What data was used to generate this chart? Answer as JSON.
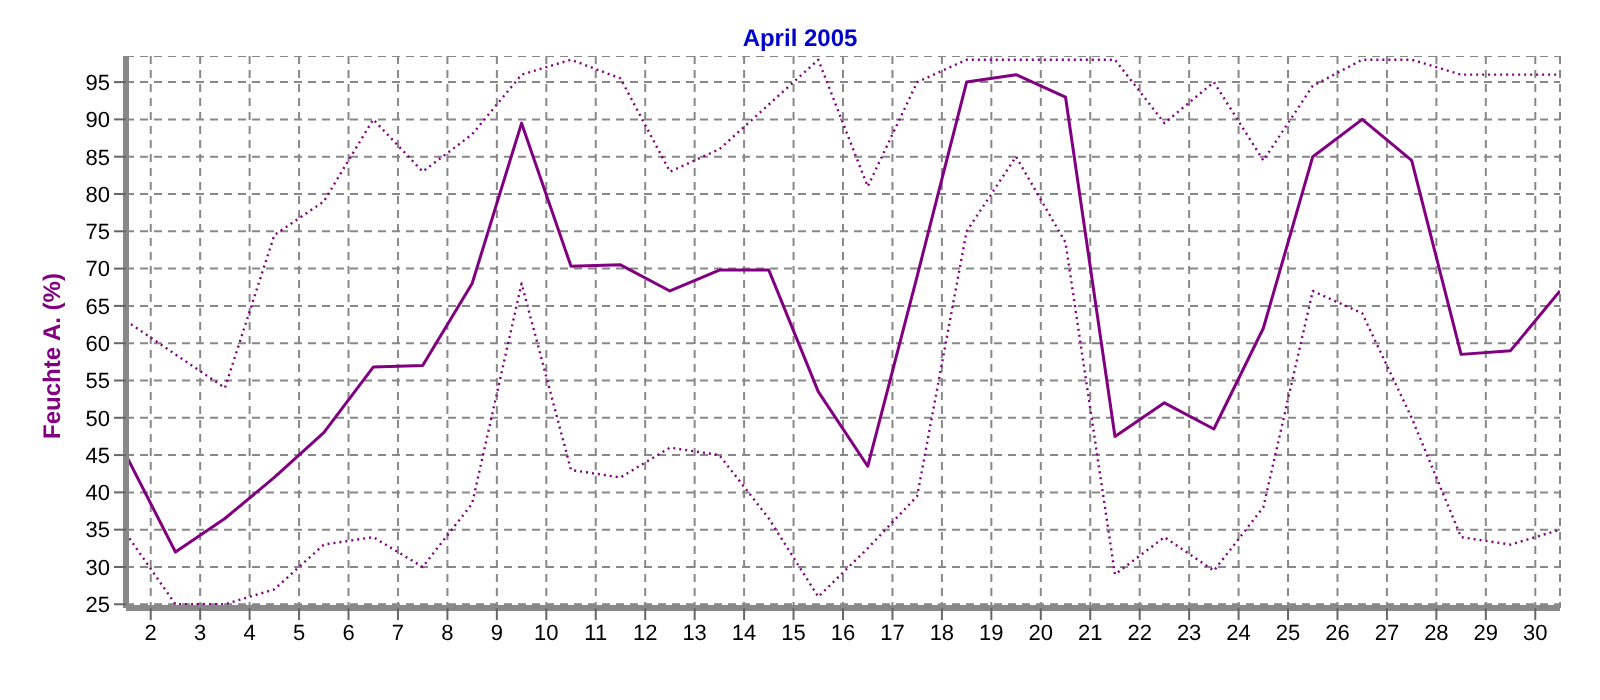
{
  "chart_data": {
    "type": "line",
    "title": "April 2005",
    "ylabel": "Feuchte A. (%)",
    "x": [
      1.5,
      2.5,
      3.5,
      4.5,
      5.5,
      6.5,
      7.5,
      8.5,
      9.5,
      10.5,
      11.5,
      12.5,
      13.5,
      14.5,
      15.5,
      16.5,
      17.5,
      18.5,
      19.5,
      20.5,
      21.5,
      22.5,
      23.5,
      24.5,
      25.5,
      26.5,
      27.5,
      28.5,
      29.5,
      30.5
    ],
    "series": [
      {
        "color": "#800080",
        "line_style": "dotted",
        "values": [
          63,
          58.5,
          54,
          74.5,
          79,
          90,
          83,
          88,
          96,
          98,
          95.5,
          83,
          86,
          92,
          98,
          81,
          95,
          98,
          98,
          98,
          98,
          89.5,
          95,
          84.5,
          94.5,
          98,
          98,
          96,
          96,
          96
        ]
      },
      {
        "color": "#800080",
        "line_style": "solid",
        "values": [
          45,
          32,
          36.5,
          42,
          48,
          56.8,
          57,
          68,
          89.5,
          70.3,
          70.5,
          67,
          69.8,
          69.8,
          53.5,
          43.5,
          69,
          95,
          96,
          93,
          47.5,
          52,
          48.5,
          62,
          85,
          90,
          84.5,
          58.5,
          59,
          67
        ]
      },
      {
        "color": "#800080",
        "line_style": "dotted",
        "values": [
          34.5,
          25,
          25,
          27,
          33,
          34,
          30,
          38.5,
          68,
          43,
          42,
          46,
          45,
          36.5,
          26,
          32.5,
          39.5,
          75,
          85,
          73.5,
          29,
          34,
          29.5,
          38,
          67,
          64,
          50,
          34,
          33,
          35
        ]
      }
    ],
    "xlim": [
      1.5,
      30.5
    ],
    "xticks": [
      2,
      3,
      4,
      5,
      6,
      7,
      8,
      9,
      10,
      11,
      12,
      13,
      14,
      15,
      16,
      17,
      18,
      19,
      20,
      21,
      22,
      23,
      24,
      25,
      26,
      27,
      28,
      29,
      30
    ],
    "ylim": [
      24.5,
      98.5
    ],
    "yticks": [
      25,
      30,
      35,
      40,
      45,
      50,
      55,
      60,
      65,
      70,
      75,
      80,
      85,
      90,
      95
    ],
    "grid": true,
    "legend": false,
    "marker": "none"
  }
}
